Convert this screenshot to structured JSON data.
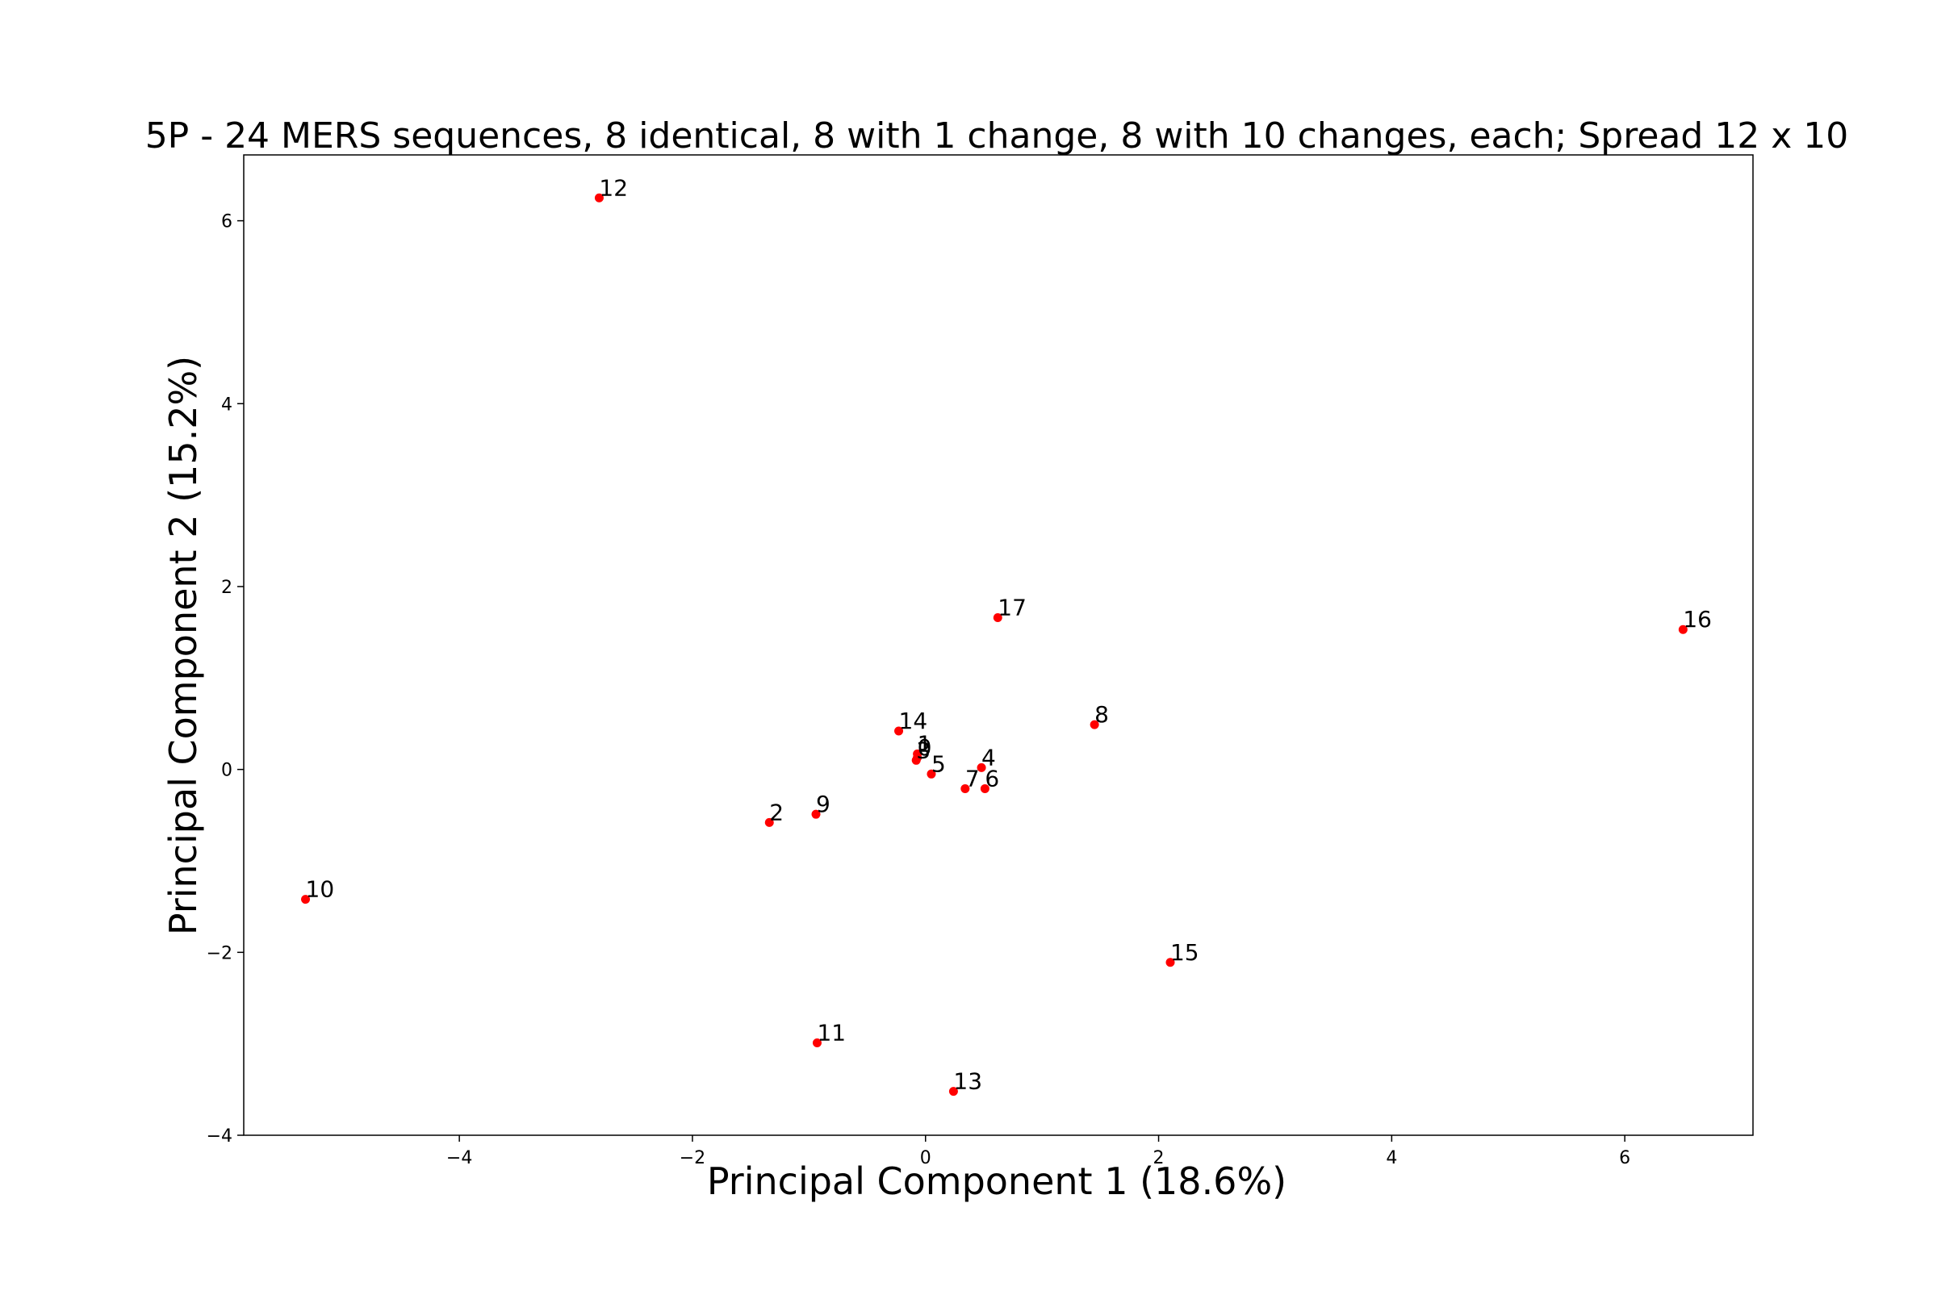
{
  "chart_data": {
    "type": "scatter",
    "title": "5P - 24 MERS sequences, 8 identical, 8 with 1 change, 8 with 10 changes, each; Spread 12 x 10",
    "xlabel": "Principal Component 1 (18.6%)",
    "ylabel": "Principal Component 2 (15.2%)",
    "xlim": [
      -5.85,
      7.1
    ],
    "ylim": [
      -4.0,
      6.72
    ],
    "xticks": [
      -4,
      -2,
      0,
      2,
      4,
      6
    ],
    "yticks": [
      -4,
      -2,
      0,
      2,
      4,
      6
    ],
    "xtick_labels": [
      "−4",
      "−2",
      "0",
      "2",
      "4",
      "6"
    ],
    "ytick_labels": [
      "−4",
      "−2",
      "0",
      "2",
      "4",
      "6"
    ],
    "grid": false,
    "marker_color": "#ff0000",
    "points": [
      {
        "label": "12",
        "x": -2.8,
        "y": 6.25
      },
      {
        "label": "17",
        "x": 0.62,
        "y": 1.66
      },
      {
        "label": "16",
        "x": 6.5,
        "y": 1.53
      },
      {
        "label": "8",
        "x": 1.45,
        "y": 0.49
      },
      {
        "label": "14",
        "x": -0.23,
        "y": 0.42
      },
      {
        "label": "1",
        "x": -0.07,
        "y": 0.17
      },
      {
        "label": "0",
        "x": -0.07,
        "y": 0.13
      },
      {
        "label": "3",
        "x": -0.08,
        "y": 0.1
      },
      {
        "label": "5",
        "x": 0.05,
        "y": -0.05
      },
      {
        "label": "4",
        "x": 0.48,
        "y": 0.02
      },
      {
        "label": "7",
        "x": 0.34,
        "y": -0.21
      },
      {
        "label": "6",
        "x": 0.51,
        "y": -0.21
      },
      {
        "label": "2",
        "x": -1.34,
        "y": -0.58
      },
      {
        "label": "9",
        "x": -0.94,
        "y": -0.49
      },
      {
        "label": "10",
        "x": -5.32,
        "y": -1.42
      },
      {
        "label": "15",
        "x": 2.1,
        "y": -2.11
      },
      {
        "label": "11",
        "x": -0.93,
        "y": -2.99
      },
      {
        "label": "13",
        "x": 0.24,
        "y": -3.52
      }
    ]
  }
}
